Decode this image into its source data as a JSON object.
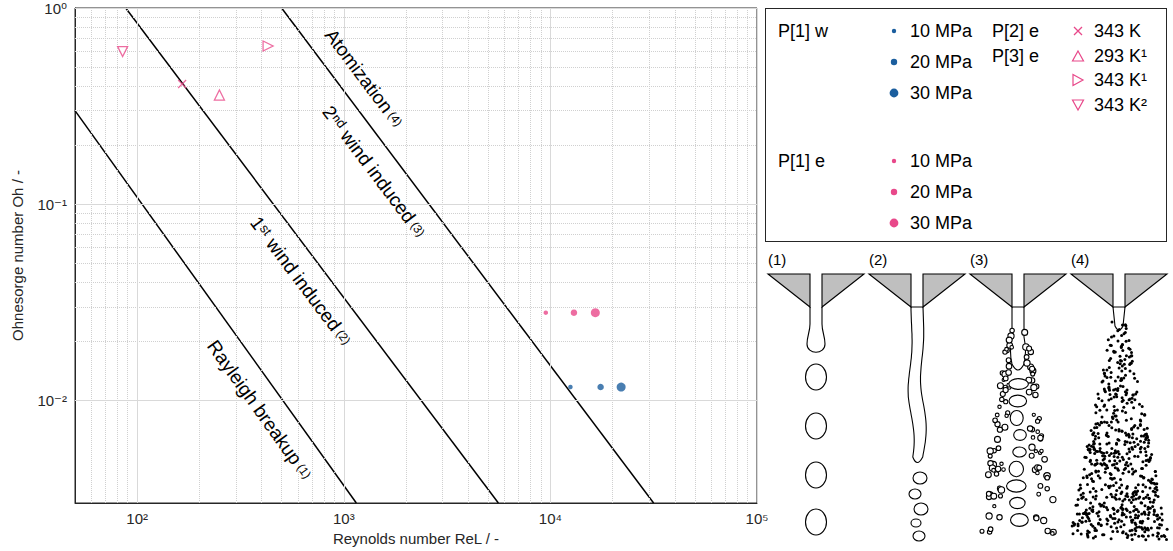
{
  "chart_data": {
    "type": "scatter",
    "xlabel": "Reynolds number ReL / -",
    "ylabel": "Ohnesorge number Oh / -",
    "log": true,
    "grid": true,
    "legend": "right",
    "xlim": [
      50,
      100000
    ],
    "ylim": [
      0.003,
      1
    ],
    "xticks": [
      {
        "value": 100,
        "label": "10²"
      },
      {
        "value": 1000,
        "label": "10³"
      },
      {
        "value": 10000,
        "label": "10⁴"
      },
      {
        "value": 100000,
        "label": "10⁵"
      }
    ],
    "yticks": [
      {
        "value": 0.01,
        "label": "10⁻²"
      },
      {
        "value": 0.1,
        "label": "10⁻¹"
      },
      {
        "value": 1,
        "label": "10⁰"
      }
    ],
    "series": [
      {
        "group": "P[1] w",
        "name": "10 MPa",
        "color": "#1b5e9e",
        "marker": "dot_small",
        "x": [
          12500
        ],
        "y": [
          0.0117
        ]
      },
      {
        "group": "P[1] w",
        "name": "20 MPa",
        "color": "#1b5e9e",
        "marker": "dot_medium",
        "x": [
          17500
        ],
        "y": [
          0.0117
        ]
      },
      {
        "group": "P[1] w",
        "name": "30 MPa",
        "color": "#1b5e9e",
        "marker": "dot_large",
        "x": [
          22000
        ],
        "y": [
          0.0117
        ]
      },
      {
        "group": "P[1] e",
        "name": "10 MPa",
        "color": "#e8488a",
        "marker": "dot_small",
        "x": [
          9500
        ],
        "y": [
          0.028
        ]
      },
      {
        "group": "P[1] e",
        "name": "20 MPa",
        "color": "#e8488a",
        "marker": "dot_medium",
        "x": [
          13000
        ],
        "y": [
          0.028
        ]
      },
      {
        "group": "P[1] e",
        "name": "30 MPa",
        "color": "#e8488a",
        "marker": "dot_large",
        "x": [
          16500
        ],
        "y": [
          0.028
        ]
      },
      {
        "group": "P[2] e",
        "name": "343 K",
        "color": "#e8488a",
        "marker": "x",
        "x": [
          165
        ],
        "y": [
          0.41
        ]
      },
      {
        "group": "P[3] e",
        "name": "293 K¹",
        "color": "#e8488a",
        "marker": "triangle-up",
        "x": [
          250
        ],
        "y": [
          0.36
        ]
      },
      {
        "group": "P[3] e",
        "name": "343 K¹",
        "color": "#e8488a",
        "marker": "triangle-right",
        "x": [
          430
        ],
        "y": [
          0.64
        ]
      },
      {
        "group": "P[3] e",
        "name": "343 K²",
        "color": "#e8488a",
        "marker": "triangle-down",
        "x": [
          85
        ],
        "y": [
          0.6
        ]
      }
    ],
    "boundaries": [
      {
        "type": "line",
        "color": "#000000",
        "x": [
          50,
          1150
        ],
        "y": [
          0.3,
          0.003
        ]
      },
      {
        "type": "line",
        "color": "#000000",
        "x": [
          88,
          5600
        ],
        "y": [
          1,
          0.003
        ]
      },
      {
        "type": "line",
        "color": "#000000",
        "x": [
          500,
          31600
        ],
        "y": [
          1,
          0.003
        ]
      }
    ],
    "regions": [
      {
        "label": "Rayleigh breakup",
        "number": "(1)"
      },
      {
        "label": "1ˢᵗ wind induced",
        "number": "(2)"
      },
      {
        "label": "2ⁿᵈ wind induced",
        "number": "(3)"
      },
      {
        "label": "Atomization",
        "number": "(4)"
      }
    ],
    "schematics": [
      "(1)",
      "(2)",
      "(3)",
      "(4)"
    ]
  }
}
